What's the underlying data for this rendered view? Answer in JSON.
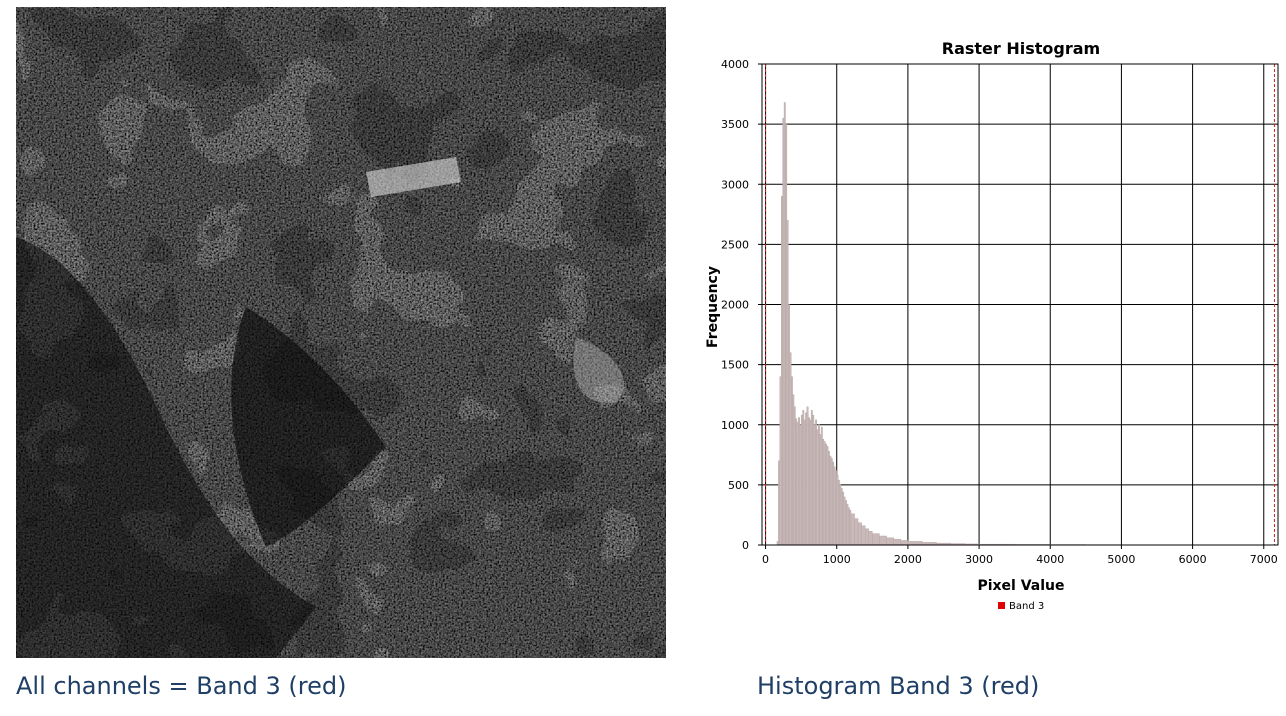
{
  "captions": {
    "left": "All channels = Band 3 (red)",
    "right": "Histogram Band 3 (red)"
  },
  "colors": {
    "caption": "#1f3f66",
    "bar_fill": "#c9b9b9",
    "bar_stroke": "#b3a3a3",
    "marker": "#cc2222",
    "legend_swatch": "#e00000"
  },
  "raster_image": {
    "description_icon": "satellite-grayscale-image"
  },
  "chart_data": {
    "type": "bar",
    "title": "Raster Histogram",
    "xlabel": "Pixel Value",
    "ylabel": "Frequency",
    "xlim": [
      -50,
      7200
    ],
    "ylim": [
      0,
      4000
    ],
    "x_ticks": [
      0,
      1000,
      2000,
      3000,
      4000,
      5000,
      6000,
      7000
    ],
    "y_ticks": [
      0,
      500,
      1000,
      1500,
      2000,
      2500,
      3000,
      3500,
      4000
    ],
    "grid": true,
    "legend_position": "bottom-center",
    "markers": [
      0,
      7150
    ],
    "series": [
      {
        "name": "Band 3",
        "bin_width": 20,
        "x": [
          160,
          180,
          200,
          220,
          240,
          260,
          280,
          300,
          320,
          340,
          360,
          380,
          400,
          420,
          440,
          460,
          480,
          500,
          520,
          540,
          560,
          580,
          600,
          620,
          640,
          660,
          680,
          700,
          720,
          740,
          760,
          780,
          800,
          820,
          840,
          860,
          880,
          900,
          920,
          940,
          960,
          980,
          1000,
          1020,
          1040,
          1060,
          1080,
          1100,
          1120,
          1140,
          1160,
          1180,
          1200,
          1250,
          1300,
          1350,
          1400,
          1450,
          1500,
          1600,
          1700,
          1800,
          1900,
          2000,
          2200,
          2400,
          2600,
          2800,
          3000,
          3500,
          4000,
          4500,
          5000,
          5500,
          6000,
          6500,
          7000
        ],
        "values": [
          30,
          700,
          1400,
          2900,
          3550,
          3680,
          3500,
          2700,
          2000,
          1600,
          1400,
          1250,
          1150,
          1050,
          1020,
          1060,
          1000,
          1080,
          1120,
          1040,
          1100,
          1150,
          1060,
          1040,
          1120,
          1080,
          1000,
          1040,
          960,
          1000,
          920,
          980,
          880,
          860,
          840,
          820,
          780,
          740,
          720,
          690,
          650,
          620,
          580,
          540,
          500,
          470,
          440,
          400,
          370,
          340,
          310,
          290,
          260,
          220,
          185,
          160,
          135,
          115,
          95,
          75,
          60,
          48,
          38,
          30,
          22,
          16,
          12,
          9,
          7,
          5,
          4,
          3,
          2,
          2,
          1,
          1,
          1
        ]
      }
    ]
  }
}
